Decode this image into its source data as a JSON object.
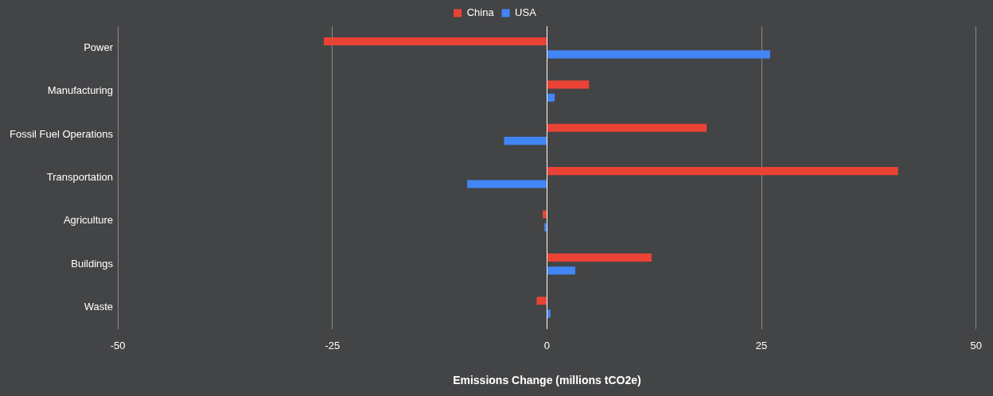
{
  "chart_data": {
    "type": "bar",
    "orientation": "horizontal",
    "xlabel": "Emissions Change (millions tCO2e)",
    "categories": [
      "Power",
      "Manufacturing",
      "Fossil Fuel Operations",
      "Transportation",
      "Agriculture",
      "Buildings",
      "Waste"
    ],
    "series": [
      {
        "name": "China",
        "color": "#ea4335",
        "values": [
          -26.0,
          4.9,
          18.6,
          40.9,
          -0.5,
          12.2,
          -1.2
        ]
      },
      {
        "name": "USA",
        "color": "#4285f4",
        "values": [
          26.0,
          0.9,
          -5.0,
          -9.3,
          -0.3,
          3.3,
          0.4
        ]
      }
    ],
    "xlim": [
      -50,
      50
    ],
    "xticks": [
      -50,
      -25,
      0,
      25,
      50
    ],
    "grid": "x",
    "legend": "top"
  }
}
